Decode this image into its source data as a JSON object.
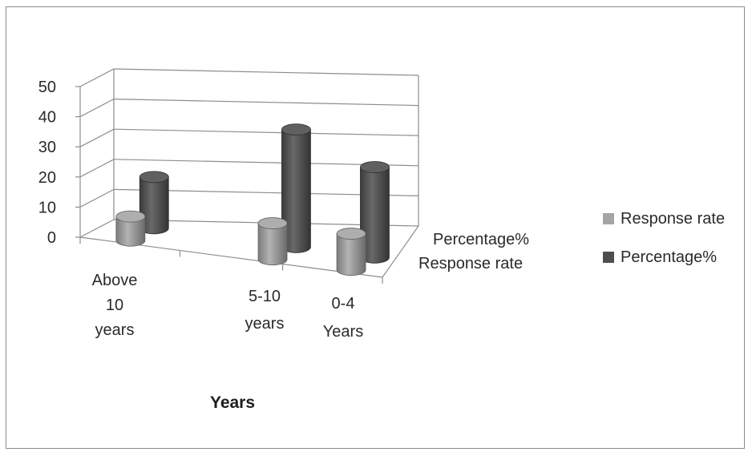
{
  "chart_data": {
    "type": "bar",
    "bar_shape": "3d-cylinder",
    "categories": [
      "Above 10 years",
      "5-10 years",
      "0-4 Years"
    ],
    "series": [
      {
        "name": "Response rate",
        "values": [
          8,
          12,
          12
        ],
        "color": "#a5a5a5"
      },
      {
        "name": "Percentage%",
        "values": [
          17,
          39,
          30
        ],
        "color": "#4e4e4e"
      }
    ],
    "depth_labels": [
      "Percentage%",
      "Response rate"
    ],
    "y_ticks": [
      "0",
      "10",
      "20",
      "30",
      "40",
      "50"
    ],
    "ylim": [
      0,
      50
    ],
    "xlabel": "Years",
    "ylabel": "",
    "title": "",
    "grid": true,
    "legend_position": "right"
  }
}
